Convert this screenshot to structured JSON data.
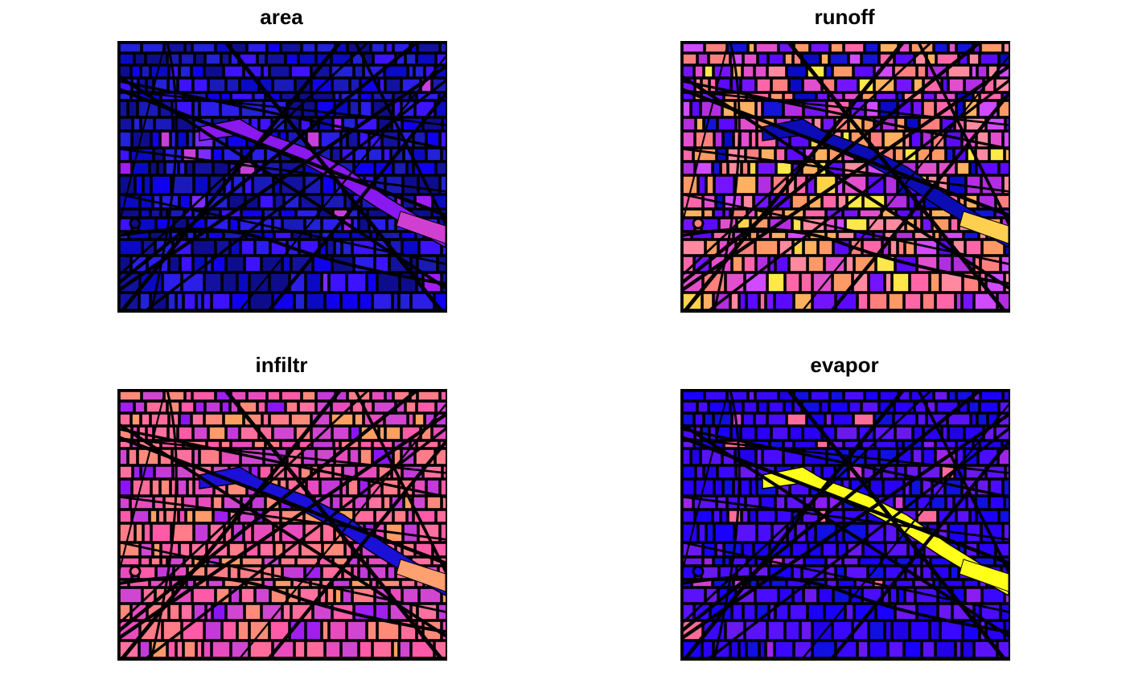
{
  "panels": [
    {
      "id": "area",
      "title": "area",
      "palette": [
        "#0d0d8c",
        "#12129e",
        "#1a1ab8",
        "#2222d6",
        "#2a1ee8",
        "#3c12ff",
        "#1000f0",
        "#0a0ac4"
      ],
      "accents": [
        "#7b2cff",
        "#a21cf6",
        "#c73fd8"
      ],
      "highlight_color": "#d040d0",
      "water_color": "#8a18f0",
      "accent_rate": 0.05
    },
    {
      "id": "runoff",
      "title": "runoff",
      "palette": [
        "#ff7f7f",
        "#ff9966",
        "#ff66a8",
        "#e24fcc",
        "#b22ee0",
        "#7414ff",
        "#5b0aff",
        "#ffb060",
        "#ff8aa0",
        "#d04aff"
      ],
      "accents": [
        "#ffe84a",
        "#ffd34a",
        "#0a0ac4",
        "#1414d8"
      ],
      "highlight_color": "#ffd050",
      "water_color": "#0c0cb4",
      "accent_rate": 0.12
    },
    {
      "id": "infiltr",
      "title": "infiltr",
      "palette": [
        "#ff6b9a",
        "#ff7c88",
        "#ff5aa8",
        "#e84bbd",
        "#ff8a7a",
        "#d146d0",
        "#ff70a0",
        "#c33ad8"
      ],
      "accents": [
        "#a01ef0",
        "#8c14f4",
        "#ffa060",
        "#ff9a6a"
      ],
      "highlight_color": "#ffa070",
      "water_color": "#1a10d8",
      "accent_rate": 0.12
    },
    {
      "id": "evapor",
      "title": "evapor",
      "palette": [
        "#1a00ff",
        "#2a00f8",
        "#3a08ff",
        "#4a0cff",
        "#1010e0",
        "#5a12f8",
        "#2200e8",
        "#6a18f0"
      ],
      "accents": [
        "#8a1cf4",
        "#a024e8",
        "#ff6b9a",
        "#d040d0"
      ],
      "highlight_color": "#ffff1a",
      "water_color": "#ffff1a",
      "accent_rate": 0.07
    }
  ]
}
